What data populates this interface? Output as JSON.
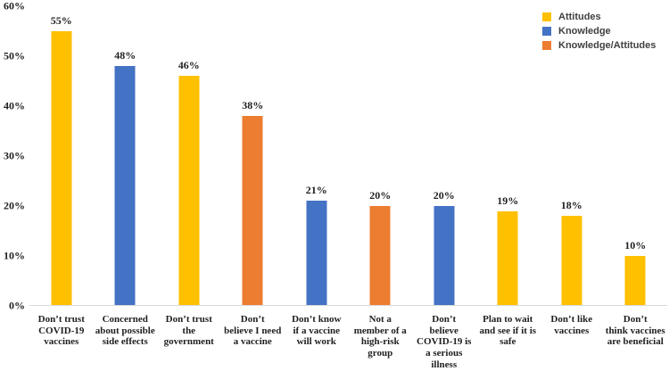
{
  "chart_data": {
    "type": "bar",
    "title": "",
    "xlabel": "",
    "ylabel": "",
    "ylim": [
      0,
      60
    ],
    "y_tick_step": 10,
    "y_ticks": [
      "0%",
      "10%",
      "20%",
      "30%",
      "40%",
      "50%",
      "60%"
    ],
    "grid": false,
    "legend_position": "top-right",
    "series_colors": {
      "Attitudes": "#FFC000",
      "Knowledge": "#4472C4",
      "Knowledge/Attitudes": "#ED7D31"
    },
    "legend": [
      {
        "label": "Attitudes",
        "color": "#FFC000"
      },
      {
        "label": "Knowledge",
        "color": "#4472C4"
      },
      {
        "label": "Knowledge/Attitudes",
        "color": "#ED7D31"
      }
    ],
    "baseline_color": "#d9d9d9",
    "bars": [
      {
        "category": "Don’t trust\nCOVID-19\nvaccines",
        "value": 55,
        "display": "55%",
        "series": "Attitudes"
      },
      {
        "category": "Concerned\nabout possible\nside effects",
        "value": 48,
        "display": "48%",
        "series": "Knowledge"
      },
      {
        "category": "Don’t trust\nthe\ngovernment",
        "value": 46,
        "display": "46%",
        "series": "Attitudes"
      },
      {
        "category": "Don’t\nbelieve I need\na vaccine",
        "value": 38,
        "display": "38%",
        "series": "Knowledge/Attitudes"
      },
      {
        "category": "Don’t know\nif a vaccine\nwill work",
        "value": 21,
        "display": "21%",
        "series": "Knowledge"
      },
      {
        "category": "Not a\nmember of a\nhigh-risk\ngroup",
        "value": 20,
        "display": "20%",
        "series": "Knowledge/Attitudes"
      },
      {
        "category": "Don’t\nbelieve\nCOVID-19 is\na serious\nillness",
        "value": 20,
        "display": "20%",
        "series": "Knowledge"
      },
      {
        "category": "Plan to wait\nand see if it is\nsafe",
        "value": 19,
        "display": "19%",
        "series": "Attitudes"
      },
      {
        "category": "Don’t like\nvaccines",
        "value": 18,
        "display": "18%",
        "series": "Attitudes"
      },
      {
        "category": "Don’t\nthink vaccines\nare beneficial",
        "value": 10,
        "display": "10%",
        "series": "Attitudes"
      }
    ]
  }
}
